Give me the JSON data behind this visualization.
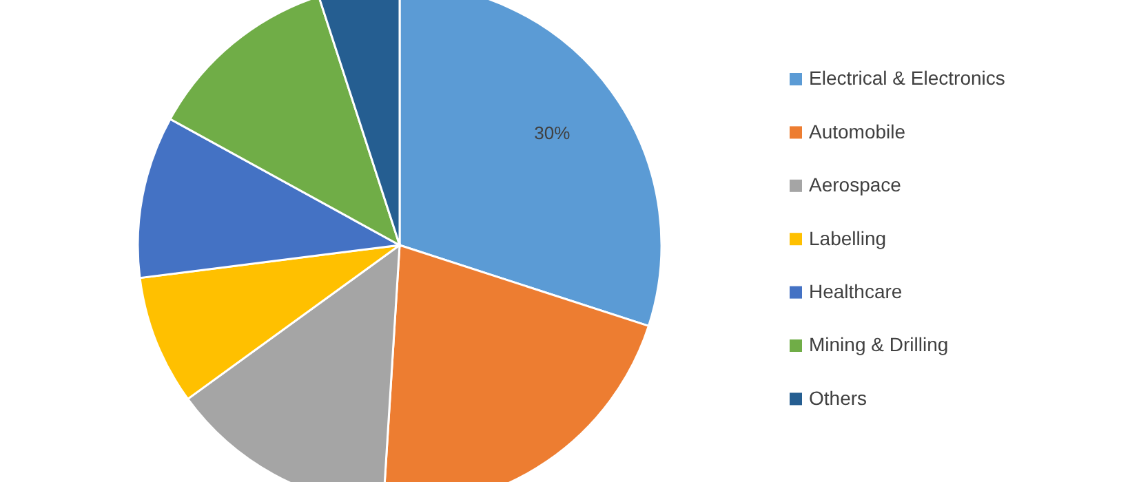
{
  "chart_data": {
    "type": "pie",
    "categories": [
      "Electrical & Electronics",
      "Automobile",
      "Aerospace",
      "Labelling",
      "Healthcare",
      "Mining & Drilling",
      "Others"
    ],
    "values": [
      30,
      21,
      14,
      8,
      10,
      12,
      5
    ],
    "value_labels": [
      "30%",
      null,
      null,
      null,
      null,
      null,
      null
    ],
    "colors": [
      "#5b9bd5",
      "#ed7d31",
      "#a5a5a5",
      "#ffc000",
      "#4472c4",
      "#70ad47",
      "#255e91"
    ],
    "legend": "right"
  }
}
